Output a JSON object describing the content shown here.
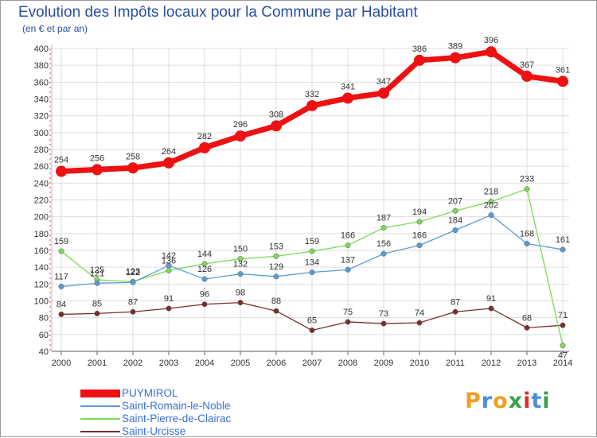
{
  "title": "Evolution des Impôts locaux pour la Commune par Habitant",
  "subtitle": "(en € et par an)",
  "logo": {
    "letters": [
      "P",
      "r",
      "o",
      "x",
      "i",
      "t",
      "i"
    ],
    "colors": [
      "#f0a020",
      "#4a8fd8",
      "#f0a020",
      "#3aa04a",
      "#e03030",
      "#4a8fd8",
      "#3aa04a"
    ]
  },
  "chart_data": {
    "type": "line",
    "title": "Evolution des Impôts locaux pour la Commune par Habitant",
    "subtitle": "(en € et par an)",
    "x": [
      "2000",
      "2001",
      "2002",
      "2003",
      "2004",
      "2005",
      "2006",
      "2007",
      "2008",
      "2009",
      "2010",
      "2011",
      "2012",
      "2013",
      "2014"
    ],
    "y_ticks": [
      "40",
      "60",
      "80",
      "100",
      "120",
      "140",
      "160",
      "180",
      "200",
      "220",
      "240",
      "260",
      "280",
      "300",
      "320",
      "340",
      "360",
      "380",
      "400"
    ],
    "ylim": [
      40,
      400
    ],
    "grid": true,
    "legend_position": "bottom-left",
    "series": [
      {
        "name": "PUYMIROL",
        "color": "#ee1111",
        "values": [
          254,
          256,
          258,
          264,
          282,
          296,
          308,
          332,
          341,
          347,
          386,
          389,
          396,
          367,
          361
        ]
      },
      {
        "name": "Saint-Romain-le-Noble",
        "color": "#5b9bd5",
        "values": [
          117,
          121,
          122,
          142,
          126,
          132,
          129,
          134,
          137,
          156,
          166,
          184,
          202,
          168,
          161
        ]
      },
      {
        "name": "Saint-Pierre-de-Clairac",
        "color": "#7ed957",
        "values": [
          159,
          125,
          123,
          136,
          144,
          150,
          153,
          159,
          166,
          187,
          194,
          207,
          218,
          233,
          47
        ]
      },
      {
        "name": "Saint-Urcisse",
        "color": "#7a2e2e",
        "values": [
          84,
          85,
          87,
          91,
          96,
          98,
          88,
          65,
          75,
          73,
          74,
          87,
          91,
          68,
          71
        ]
      }
    ]
  }
}
